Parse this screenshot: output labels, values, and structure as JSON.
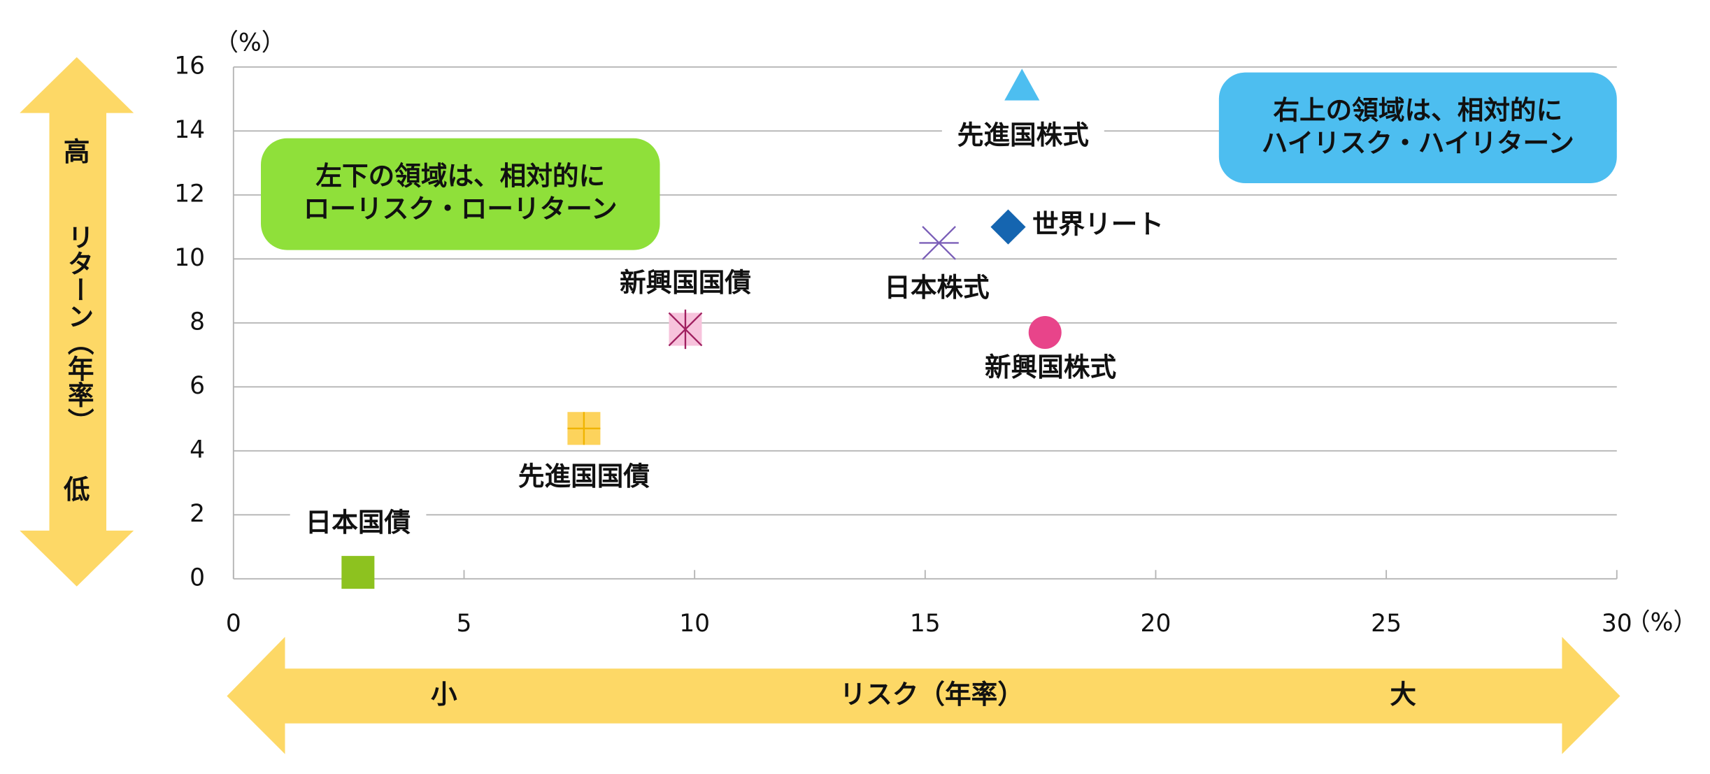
{
  "chart_data": {
    "type": "scatter",
    "xlabel": "リスク（年率）",
    "x_low": "小",
    "x_high": "大",
    "ylabel": "リターン（年率）",
    "y_high": "高",
    "y_low": "低",
    "xunit": "（%）",
    "yunit": "（%）",
    "xlim": [
      0,
      30
    ],
    "xticks": [
      0,
      5,
      10,
      15,
      20,
      25,
      30
    ],
    "ylim": [
      0,
      16
    ],
    "yticks": [
      0,
      2,
      4,
      6,
      8,
      10,
      12,
      14,
      16
    ],
    "grid": true,
    "series": [
      {
        "name": "日本国債",
        "color": "#8dc21f",
        "marker": "square",
        "x": [
          2.7
        ],
        "values": [
          0.2
        ]
      },
      {
        "name": "先進国国債",
        "color": "#fdd35c",
        "marker": "plus-square",
        "x": [
          7.6
        ],
        "values": [
          4.7
        ]
      },
      {
        "name": "新興国国債",
        "color": "#f7c3dc",
        "marker": "star-square",
        "x": [
          9.8
        ],
        "values": [
          7.8
        ]
      },
      {
        "name": "日本株式",
        "color": "#7b5fb8",
        "marker": "x",
        "x": [
          15.3
        ],
        "values": [
          10.5
        ]
      },
      {
        "name": "世界リート",
        "color": "#1565b0",
        "marker": "diamond",
        "x": [
          16.8
        ],
        "values": [
          11.0
        ]
      },
      {
        "name": "新興国株式",
        "color": "#e8448a",
        "marker": "circle",
        "x": [
          17.6
        ],
        "values": [
          7.7
        ]
      },
      {
        "name": "先進国株式",
        "color": "#4dbef0",
        "marker": "triangle",
        "x": [
          17.1
        ],
        "values": [
          15.4
        ]
      }
    ],
    "annotations": [
      {
        "lines": [
          "左下の領域は、相対的に",
          "ローリスク・ローリターン"
        ],
        "color": "#8fe03a"
      },
      {
        "lines": [
          "右上の領域は、相対的に",
          "ハイリスク・ハイリターン"
        ],
        "color": "#4dbef0"
      }
    ]
  }
}
